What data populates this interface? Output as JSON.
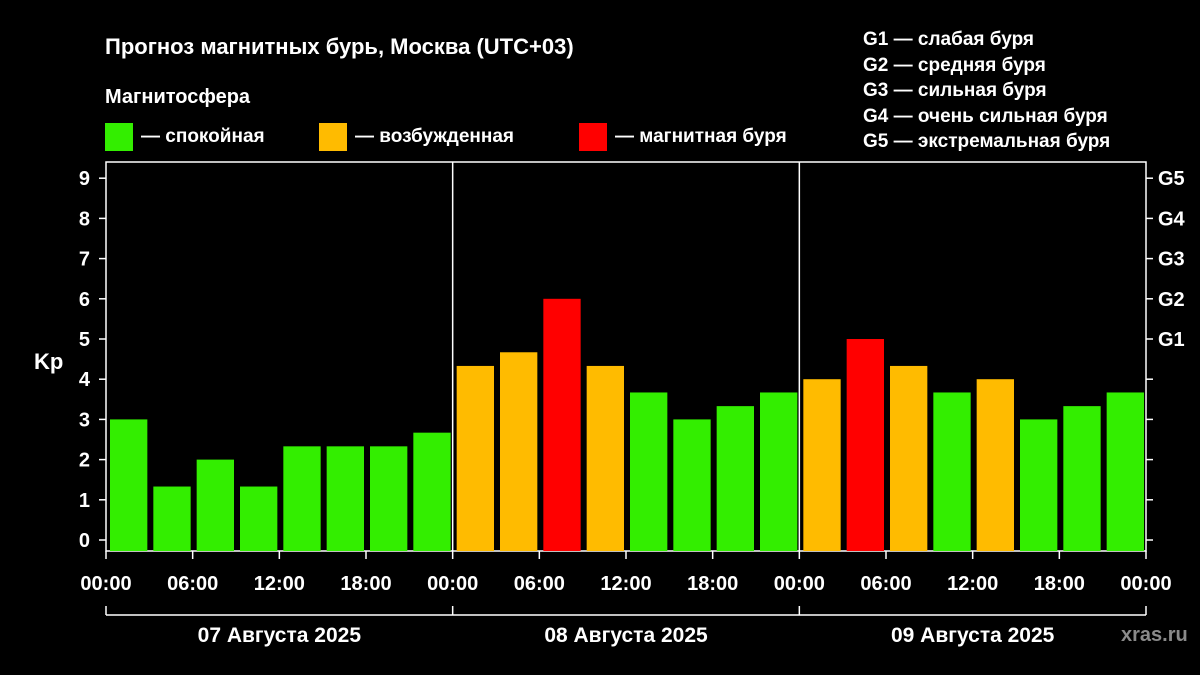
{
  "title": "Прогноз магнитных бурь, Москва (UTC+03)",
  "subtitle": "Магнитосфера",
  "legend": [
    {
      "label": "— спокойная",
      "color": "#33ee00"
    },
    {
      "label": "— возбужденная",
      "color": "#ffbb00"
    },
    {
      "label": "— магнитная буря",
      "color": "#ff0000"
    }
  ],
  "g_legend": [
    "G1 — слабая буря",
    "G2 — средняя буря",
    "G3 — сильная буря",
    "G4 — очень сильная буря",
    "G5 — экстремальная буря"
  ],
  "watermark": "xras.ru",
  "chart_data": {
    "type": "bar",
    "ylabel": "Kp",
    "ylim": [
      0,
      9
    ],
    "y_ticks": [
      0,
      1,
      2,
      3,
      4,
      5,
      6,
      7,
      8,
      9
    ],
    "right_ticks": [
      {
        "value": 5,
        "label": "G1"
      },
      {
        "value": 6,
        "label": "G2"
      },
      {
        "value": 7,
        "label": "G3"
      },
      {
        "value": 8,
        "label": "G4"
      },
      {
        "value": 9,
        "label": "G5"
      }
    ],
    "x_tick_labels": [
      "00:00",
      "06:00",
      "12:00",
      "18:00",
      "00:00",
      "06:00",
      "12:00",
      "18:00",
      "00:00",
      "06:00",
      "12:00",
      "18:00",
      "00:00"
    ],
    "days": [
      "07 Августа 2025",
      "08 Августа 2025",
      "09 Августа 2025"
    ],
    "values": [
      3.0,
      1.33,
      2.0,
      1.33,
      2.33,
      2.33,
      2.33,
      2.67,
      4.33,
      4.67,
      6.0,
      4.33,
      3.67,
      3.0,
      3.33,
      3.67,
      4.0,
      5.0,
      4.33,
      3.67,
      4.0,
      3.0,
      3.33,
      3.67
    ],
    "levels": [
      "quiet",
      "quiet",
      "quiet",
      "quiet",
      "quiet",
      "quiet",
      "quiet",
      "quiet",
      "active",
      "active",
      "storm",
      "active",
      "quiet",
      "quiet",
      "quiet",
      "quiet",
      "active",
      "storm",
      "active",
      "quiet",
      "active",
      "quiet",
      "quiet",
      "quiet"
    ],
    "level_colors": {
      "quiet": "#33ee00",
      "active": "#ffbb00",
      "storm": "#ff0000"
    }
  }
}
